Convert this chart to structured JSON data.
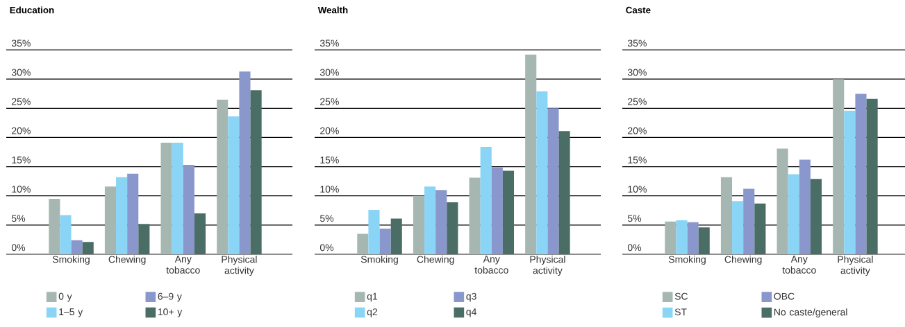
{
  "chart_data": [
    {
      "type": "bar",
      "title": "Education",
      "categories": [
        "Smoking",
        "Chewing",
        "Any tobacco",
        "Physical activity"
      ],
      "grid": "y",
      "legend": "bottom left",
      "ylim": [
        0,
        35
      ],
      "yticks": [
        {
          "value": 0,
          "label": "0%"
        },
        {
          "value": 5,
          "label": "5%"
        },
        {
          "value": 10,
          "label": "10%"
        },
        {
          "value": 15,
          "label": "15%"
        },
        {
          "value": 20,
          "label": "20%"
        },
        {
          "value": 25,
          "label": "25%"
        },
        {
          "value": 30,
          "label": "30%"
        },
        {
          "value": 35,
          "label": "35%"
        }
      ],
      "series": [
        {
          "name": "0 y",
          "color": "#a6b7b2",
          "values": [
            9.5,
            11.6,
            19.1,
            26.5
          ]
        },
        {
          "name": "1–5 y",
          "color": "#8ad4f5",
          "values": [
            6.7,
            13.2,
            19.1,
            23.6
          ]
        },
        {
          "name": "6–9 y",
          "color": "#8a97cc",
          "values": [
            2.4,
            13.8,
            15.3,
            31.3
          ]
        },
        {
          "name": "10+ y",
          "color": "#4a6e66",
          "values": [
            2.1,
            5.2,
            7.0,
            28.1
          ]
        }
      ]
    },
    {
      "type": "bar",
      "title": "Wealth",
      "categories": [
        "Smoking",
        "Chewing",
        "Any tobacco",
        "Physical activity"
      ],
      "grid": "y",
      "legend": "bottom left",
      "ylim": [
        0,
        35
      ],
      "yticks": [
        {
          "value": 0,
          "label": "0%"
        },
        {
          "value": 5,
          "label": "5%"
        },
        {
          "value": 10,
          "label": "10%"
        },
        {
          "value": 15,
          "label": "15%"
        },
        {
          "value": 20,
          "label": "20%"
        },
        {
          "value": 25,
          "label": "25%"
        },
        {
          "value": 30,
          "label": "30%"
        },
        {
          "value": 35,
          "label": "35%"
        }
      ],
      "series": [
        {
          "name": "q1",
          "color": "#a6b7b2",
          "values": [
            3.5,
            10.0,
            13.1,
            34.2
          ]
        },
        {
          "name": "q2",
          "color": "#8ad4f5",
          "values": [
            7.6,
            11.6,
            18.4,
            27.9
          ]
        },
        {
          "name": "q3",
          "color": "#8a97cc",
          "values": [
            4.4,
            11.0,
            14.9,
            25.0
          ]
        },
        {
          "name": "q4",
          "color": "#4a6e66",
          "values": [
            6.1,
            8.9,
            14.3,
            21.1
          ]
        }
      ]
    },
    {
      "type": "bar",
      "title": "Caste",
      "categories": [
        "Smoking",
        "Chewing",
        "Any tobacco",
        "Physical activity"
      ],
      "grid": "y",
      "legend": "bottom left",
      "ylim": [
        0,
        35
      ],
      "yticks": [
        {
          "value": 0,
          "label": "0%"
        },
        {
          "value": 5,
          "label": "5%"
        },
        {
          "value": 10,
          "label": "10%"
        },
        {
          "value": 15,
          "label": "15%"
        },
        {
          "value": 20,
          "label": "20%"
        },
        {
          "value": 25,
          "label": "25%"
        },
        {
          "value": 30,
          "label": "30%"
        },
        {
          "value": 35,
          "label": "35%"
        }
      ],
      "series": [
        {
          "name": "SC",
          "color": "#a6b7b2",
          "values": [
            5.6,
            13.2,
            18.1,
            30.0
          ]
        },
        {
          "name": "ST",
          "color": "#8ad4f5",
          "values": [
            5.8,
            9.1,
            13.7,
            24.6
          ]
        },
        {
          "name": "OBC",
          "color": "#8a97cc",
          "values": [
            5.5,
            11.2,
            16.2,
            27.5
          ]
        },
        {
          "name": "No caste/general",
          "color": "#4a6e66",
          "values": [
            4.6,
            8.7,
            12.9,
            26.6
          ]
        }
      ]
    }
  ]
}
